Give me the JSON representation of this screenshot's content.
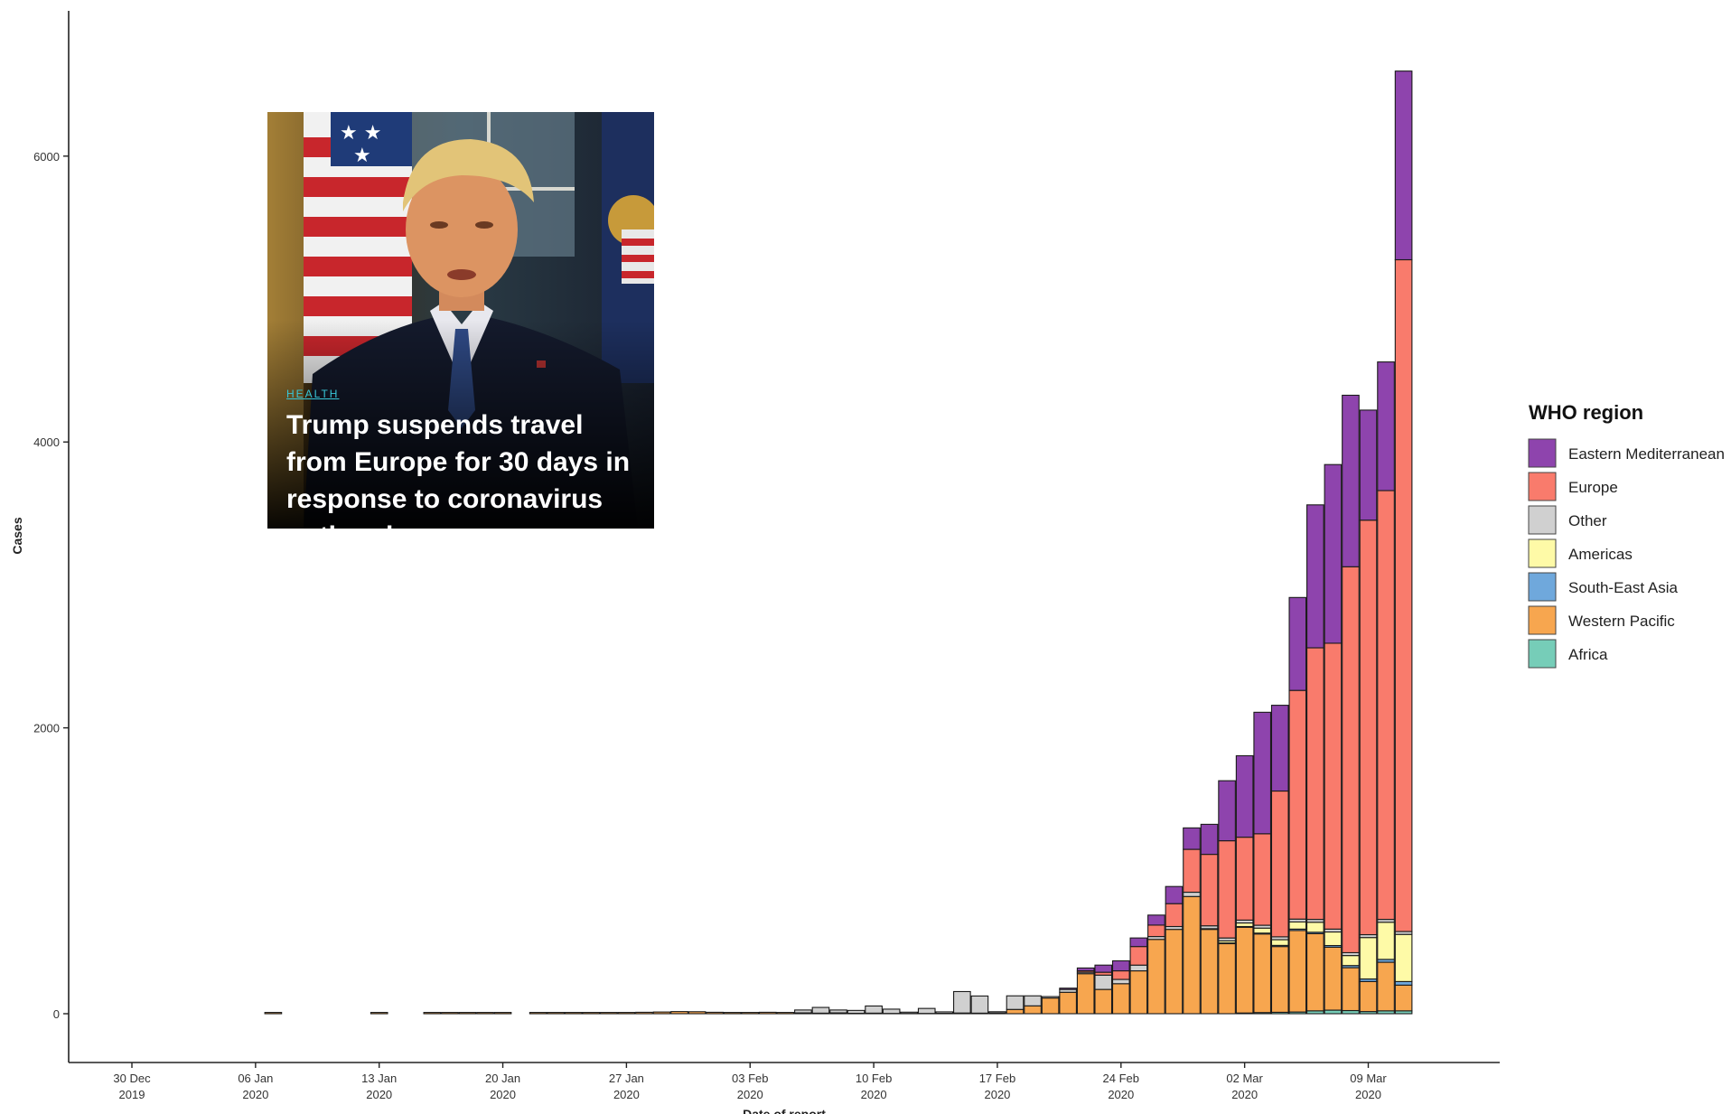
{
  "chart_data": {
    "type": "bar",
    "stacked": true,
    "xlabel": "Date of report",
    "ylabel": "Cases",
    "ylim": [
      -400,
      7000
    ],
    "yticks": [
      0,
      2000,
      4000,
      6000
    ],
    "x_tick_labels": [
      [
        "30 Dec",
        "2019"
      ],
      [
        "06 Jan",
        "2020"
      ],
      [
        "13 Jan",
        "2020"
      ],
      [
        "20 Jan",
        "2020"
      ],
      [
        "27 Jan",
        "2020"
      ],
      [
        "03 Feb",
        "2020"
      ],
      [
        "10 Feb",
        "2020"
      ],
      [
        "17 Feb",
        "2020"
      ],
      [
        "24 Feb",
        "2020"
      ],
      [
        "02 Mar",
        "2020"
      ],
      [
        "09 Mar",
        "2020"
      ]
    ],
    "day_index_of_first_tick": 0,
    "days_between_ticks": 7,
    "legend": {
      "title": "WHO region",
      "position": "right"
    },
    "days": [
      "2020-01-07",
      "2020-01-13",
      "2020-01-16",
      "2020-01-17",
      "2020-01-18",
      "2020-01-19",
      "2020-01-20",
      "2020-01-22",
      "2020-01-23",
      "2020-01-24",
      "2020-01-25",
      "2020-01-26",
      "2020-01-27",
      "2020-01-28",
      "2020-01-29",
      "2020-01-30",
      "2020-01-31",
      "2020-02-01",
      "2020-02-02",
      "2020-02-03",
      "2020-02-04",
      "2020-02-05",
      "2020-02-06",
      "2020-02-07",
      "2020-02-08",
      "2020-02-09",
      "2020-02-10",
      "2020-02-11",
      "2020-02-12",
      "2020-02-13",
      "2020-02-14",
      "2020-02-15",
      "2020-02-16",
      "2020-02-17",
      "2020-02-18",
      "2020-02-19",
      "2020-02-20",
      "2020-02-21",
      "2020-02-22",
      "2020-02-23",
      "2020-02-24",
      "2020-02-25",
      "2020-02-26",
      "2020-02-27",
      "2020-02-28",
      "2020-02-29",
      "2020-03-01",
      "2020-03-02",
      "2020-03-03",
      "2020-03-04",
      "2020-03-05",
      "2020-03-06",
      "2020-03-07",
      "2020-03-08",
      "2020-03-09",
      "2020-03-10",
      "2020-03-11"
    ],
    "series": [
      {
        "name": "Africa",
        "color": "#76cdb8",
        "values": [
          0,
          0,
          0,
          0,
          0,
          0,
          0,
          0,
          0,
          0,
          0,
          0,
          0,
          0,
          0,
          0,
          0,
          0,
          0,
          0,
          0,
          0,
          0,
          0,
          0,
          0,
          0,
          0,
          0,
          0,
          0,
          0,
          0,
          0,
          0,
          0,
          0,
          0,
          0,
          0,
          0,
          0,
          0,
          0,
          0,
          0,
          0,
          5,
          8,
          10,
          12,
          20,
          25,
          22,
          15,
          20,
          20
        ]
      },
      {
        "name": "Western Pacific",
        "color": "#f7a64f",
        "values": [
          1,
          1,
          1,
          1,
          1,
          1,
          1,
          2,
          4,
          5,
          5,
          6,
          8,
          10,
          12,
          15,
          14,
          10,
          4,
          8,
          10,
          8,
          6,
          4,
          6,
          3,
          4,
          2,
          2,
          2,
          3,
          5,
          4,
          5,
          30,
          55,
          110,
          150,
          280,
          170,
          210,
          300,
          520,
          590,
          820,
          590,
          490,
          600,
          550,
          460,
          570,
          540,
          440,
          300,
          210,
          340,
          180
        ]
      },
      {
        "name": "South-East Asia",
        "color": "#6fa8dc",
        "values": [
          0,
          0,
          0,
          0,
          0,
          0,
          0,
          0,
          0,
          0,
          0,
          0,
          0,
          0,
          0,
          0,
          0,
          0,
          0,
          0,
          0,
          0,
          0,
          0,
          0,
          0,
          0,
          0,
          0,
          0,
          0,
          0,
          0,
          0,
          0,
          0,
          0,
          0,
          0,
          0,
          0,
          0,
          0,
          0,
          0,
          0,
          5,
          5,
          6,
          8,
          10,
          10,
          12,
          15,
          18,
          20,
          25
        ]
      },
      {
        "name": "Americas",
        "color": "#fefaa7",
        "values": [
          0,
          0,
          0,
          0,
          0,
          0,
          0,
          0,
          0,
          0,
          0,
          0,
          0,
          0,
          0,
          0,
          0,
          0,
          0,
          0,
          0,
          0,
          0,
          0,
          0,
          0,
          0,
          0,
          0,
          0,
          0,
          0,
          0,
          0,
          0,
          0,
          0,
          0,
          0,
          0,
          0,
          0,
          0,
          0,
          0,
          5,
          15,
          25,
          35,
          40,
          50,
          70,
          95,
          70,
          290,
          260,
          330
        ]
      },
      {
        "name": "Other",
        "color": "#d0d0d0",
        "values": [
          0,
          0,
          0,
          0,
          0,
          0,
          0,
          0,
          0,
          0,
          0,
          0,
          0,
          0,
          0,
          0,
          0,
          0,
          0,
          0,
          0,
          0,
          20,
          40,
          20,
          20,
          50,
          30,
          5,
          35,
          10,
          150,
          120,
          5,
          95,
          70,
          10,
          20,
          10,
          100,
          30,
          40,
          20,
          20,
          30,
          20,
          20,
          20,
          20,
          20,
          20,
          20,
          20,
          20,
          20,
          20,
          20
        ]
      },
      {
        "name": "Europe",
        "color": "#f97b6c",
        "values": [
          0,
          0,
          0,
          0,
          0,
          0,
          0,
          0,
          0,
          0,
          0,
          0,
          0,
          0,
          0,
          0,
          0,
          0,
          0,
          0,
          0,
          0,
          0,
          0,
          0,
          0,
          0,
          0,
          0,
          0,
          0,
          0,
          0,
          0,
          0,
          0,
          0,
          0,
          10,
          20,
          60,
          130,
          80,
          160,
          300,
          500,
          680,
          580,
          640,
          1020,
          1600,
          1900,
          2000,
          2700,
          2900,
          3000,
          4700
        ]
      },
      {
        "name": "Eastern Mediterranean",
        "color": "#8e44ad",
        "values": [
          0,
          0,
          0,
          0,
          0,
          0,
          0,
          0,
          0,
          0,
          0,
          0,
          0,
          0,
          0,
          0,
          0,
          0,
          0,
          0,
          0,
          0,
          0,
          0,
          0,
          0,
          0,
          0,
          0,
          0,
          0,
          0,
          0,
          0,
          0,
          0,
          0,
          5,
          20,
          50,
          70,
          60,
          70,
          120,
          150,
          210,
          420,
          570,
          850,
          600,
          650,
          1000,
          1250,
          1200,
          770,
          900,
          1320
        ]
      }
    ]
  },
  "news_card": {
    "category": "HEALTH",
    "headline": "Trump suspends travel from Europe for 30 days in response to coronavirus outbreak"
  }
}
